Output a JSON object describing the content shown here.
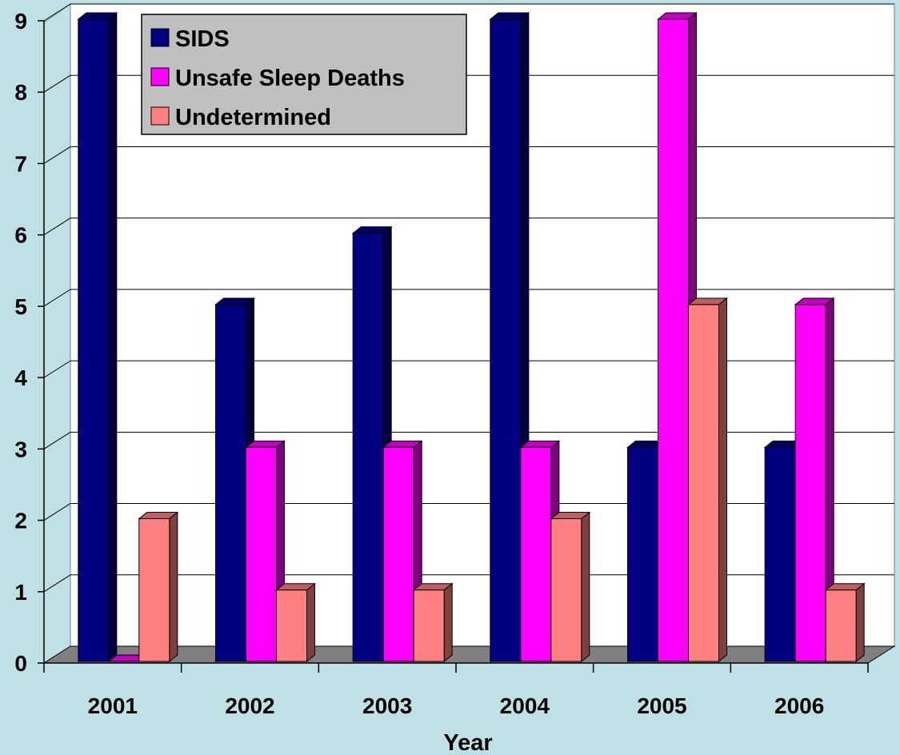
{
  "chart_data": {
    "type": "bar",
    "title": "",
    "xlabel": "Year",
    "ylabel": "",
    "categories": [
      "2001",
      "2002",
      "2003",
      "2004",
      "2005",
      "2006"
    ],
    "series": [
      {
        "name": "SIDS",
        "values": [
          9,
          5,
          6,
          9,
          3,
          3
        ],
        "color": "#000080"
      },
      {
        "name": "Unsafe Sleep Deaths",
        "values": [
          0,
          3,
          3,
          3,
          9,
          5
        ],
        "color": "#ff00ff"
      },
      {
        "name": "Undetermined",
        "values": [
          2,
          1,
          1,
          2,
          5,
          1
        ],
        "color": "#ff8080"
      }
    ],
    "ylim": [
      0,
      9
    ],
    "yticks": [
      0,
      1,
      2,
      3,
      4,
      5,
      6,
      7,
      8,
      9
    ],
    "grid": true,
    "legend_position": "top-left",
    "three_d": true
  },
  "colors": {
    "background": "#bfe0e4",
    "plot_wall": "#ffffff",
    "floor": "#808080",
    "legend_fill": "#c0c0c0"
  }
}
